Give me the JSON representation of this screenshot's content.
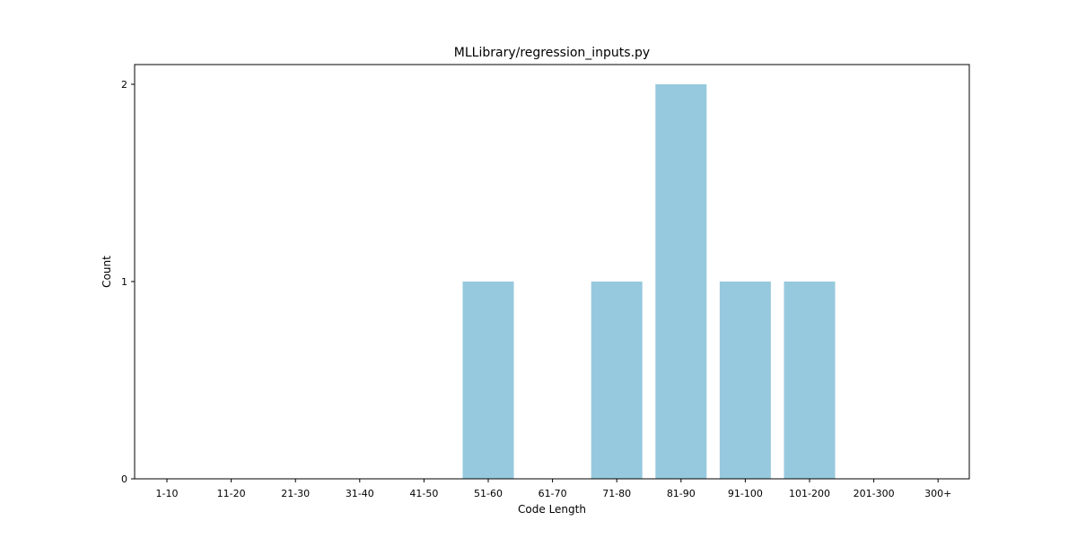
{
  "chart_data": {
    "type": "bar",
    "title": "MLLibrary/regression_inputs.py",
    "xlabel": "Code Length",
    "ylabel": "Count",
    "categories": [
      "1-10",
      "11-20",
      "21-30",
      "31-40",
      "41-50",
      "51-60",
      "61-70",
      "71-80",
      "81-90",
      "91-100",
      "101-200",
      "201-300",
      "300+"
    ],
    "values": [
      0,
      0,
      0,
      0,
      0,
      1,
      0,
      1,
      2,
      1,
      1,
      0,
      0
    ],
    "ylim": [
      0,
      2.1
    ],
    "yticks": [
      0,
      1,
      2
    ],
    "grid": false,
    "legend": "none",
    "bar_color": "#96c9de"
  }
}
